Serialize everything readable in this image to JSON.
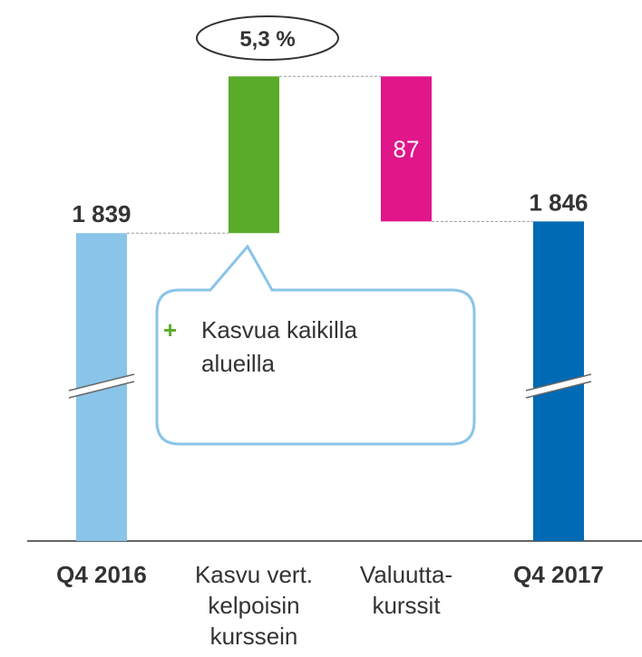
{
  "chart_data": {
    "type": "waterfall",
    "categories": [
      "Q4 2016",
      "Kasvu vert. kelpoisin kurssein",
      "Valuutta-kurssit",
      "Q4 2017"
    ],
    "values": [
      1839,
      94,
      -87,
      1846
    ],
    "value_labels": [
      "1 839",
      null,
      "87",
      "1 846"
    ],
    "measure": [
      "total",
      "relative",
      "relative",
      "total"
    ],
    "colors": [
      "#8ac4e8",
      "#5aab2a",
      "#e0168a",
      "#006ab4"
    ],
    "ylim": [
      1750,
      1950
    ],
    "broken_axis": true,
    "annotation": "5,3 %",
    "callout_marker": "+",
    "callout": "Kasvua kaikilla alueilla"
  }
}
